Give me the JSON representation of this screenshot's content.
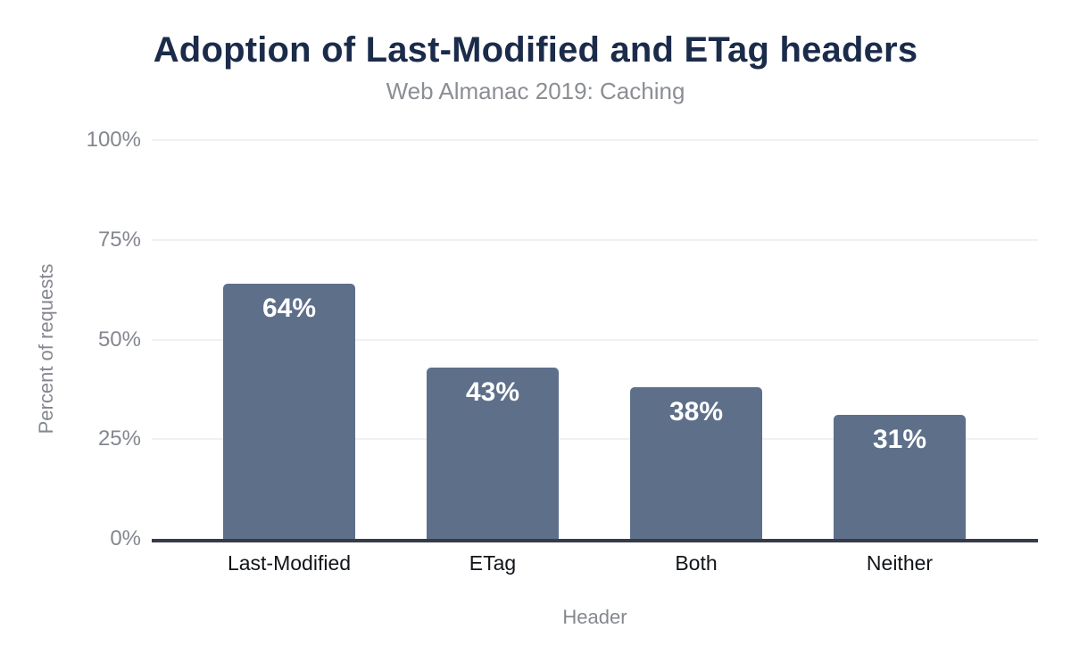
{
  "chart_data": {
    "type": "bar",
    "title": "Adoption of Last-Modified and ETag headers",
    "subtitle": "Web Almanac 2019: Caching",
    "categories": [
      "Last-Modified",
      "ETag",
      "Both",
      "Neither"
    ],
    "values": [
      64,
      43,
      38,
      31
    ],
    "value_labels": [
      "64%",
      "43%",
      "38%",
      "31%"
    ],
    "xlabel": "Header",
    "ylabel": "Percent of requests",
    "ylim": [
      0,
      100
    ],
    "yticks": [
      0,
      25,
      50,
      75,
      100
    ],
    "ytick_labels": [
      "0%",
      "25%",
      "50%",
      "75%",
      "100%"
    ],
    "grid": "horizontal-on",
    "legend": "none",
    "colors": {
      "bar_fill": "#5e6f8a",
      "bar_value_text": "#ffffff",
      "title_text": "#1b2b4a",
      "subtitle_text": "#8b8e93",
      "axis_tick_text": "#84878f",
      "axis_title_text": "#85888f",
      "category_text": "#111418",
      "gridline": "#f0f1f3",
      "axis_line": "#353b48",
      "background": "#ffffff"
    }
  }
}
